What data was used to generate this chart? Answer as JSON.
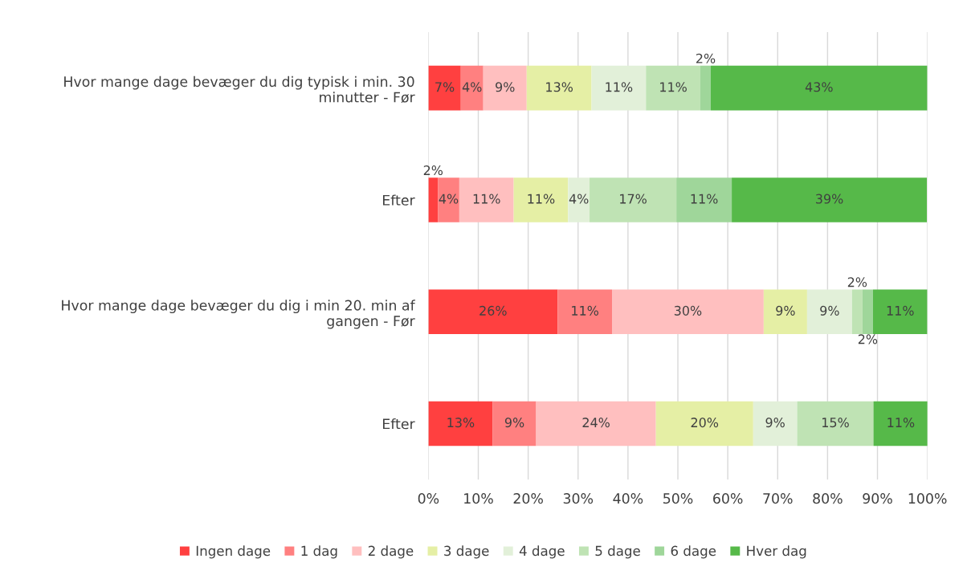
{
  "chart_data": {
    "type": "bar",
    "orientation": "horizontal",
    "stacked": true,
    "categories": [
      "Hvor mange dage bevæger du dig typisk i min. 30\nminutter - Før",
      "Efter",
      "Hvor mange dage bevæger du dig i min 20. min af\ngangen - Før",
      "Efter"
    ],
    "series": [
      {
        "name": "Ingen dage",
        "color": "#ff4040",
        "values": [
          6.5,
          1.9,
          25.9,
          12.9
        ],
        "value_labels": [
          "7%",
          "2%",
          "26%",
          "13%"
        ]
      },
      {
        "name": "1 dag",
        "color": "#ff8080",
        "values": [
          4.5,
          4.3,
          10.9,
          8.7
        ],
        "value_labels": [
          "4%",
          "4%",
          "11%",
          "9%"
        ]
      },
      {
        "name": "2 dage",
        "color": "#ffbfbf",
        "values": [
          8.7,
          10.9,
          30.4,
          24.0
        ],
        "value_labels": [
          "9%",
          "11%",
          "30%",
          "24%"
        ]
      },
      {
        "name": "3 dage",
        "color": "#e5efa5",
        "values": [
          13.0,
          10.9,
          8.7,
          19.5
        ],
        "value_labels": [
          "13%",
          "11%",
          "9%",
          "20%"
        ]
      },
      {
        "name": "4 dage",
        "color": "#e2f0d9",
        "values": [
          10.9,
          4.3,
          9.0,
          8.8
        ],
        "value_labels": [
          "11%",
          "4%",
          "9%",
          "9%"
        ]
      },
      {
        "name": "5 dage",
        "color": "#bfe3b4",
        "values": [
          10.9,
          17.4,
          2.1,
          15.3
        ],
        "value_labels": [
          "11%",
          "17%",
          "2%",
          "15%"
        ]
      },
      {
        "name": "6 dage",
        "color": "#9fd69a",
        "values": [
          2.1,
          11.1,
          2.1,
          0
        ],
        "value_labels": [
          "2%",
          "11%",
          "2%",
          null
        ]
      },
      {
        "name": "Hver dag",
        "color": "#56b949",
        "values": [
          43.4,
          39.1,
          10.9,
          10.9
        ],
        "value_labels": [
          "43%",
          "39%",
          "11%",
          "11%"
        ]
      }
    ],
    "xlim": [
      0,
      100
    ],
    "xticks": [
      {
        "value": 0,
        "label": "0%"
      },
      {
        "value": 10,
        "label": "10%"
      },
      {
        "value": 20,
        "label": "20%"
      },
      {
        "value": 30,
        "label": "30%"
      },
      {
        "value": 40,
        "label": "40%"
      },
      {
        "value": 50,
        "label": "50%"
      },
      {
        "value": 60,
        "label": "60%"
      },
      {
        "value": 70,
        "label": "70%"
      },
      {
        "value": 80,
        "label": "80%"
      },
      {
        "value": 90,
        "label": "90%"
      },
      {
        "value": 100,
        "label": "100%"
      }
    ],
    "grid": "x",
    "legend": "bottom"
  }
}
